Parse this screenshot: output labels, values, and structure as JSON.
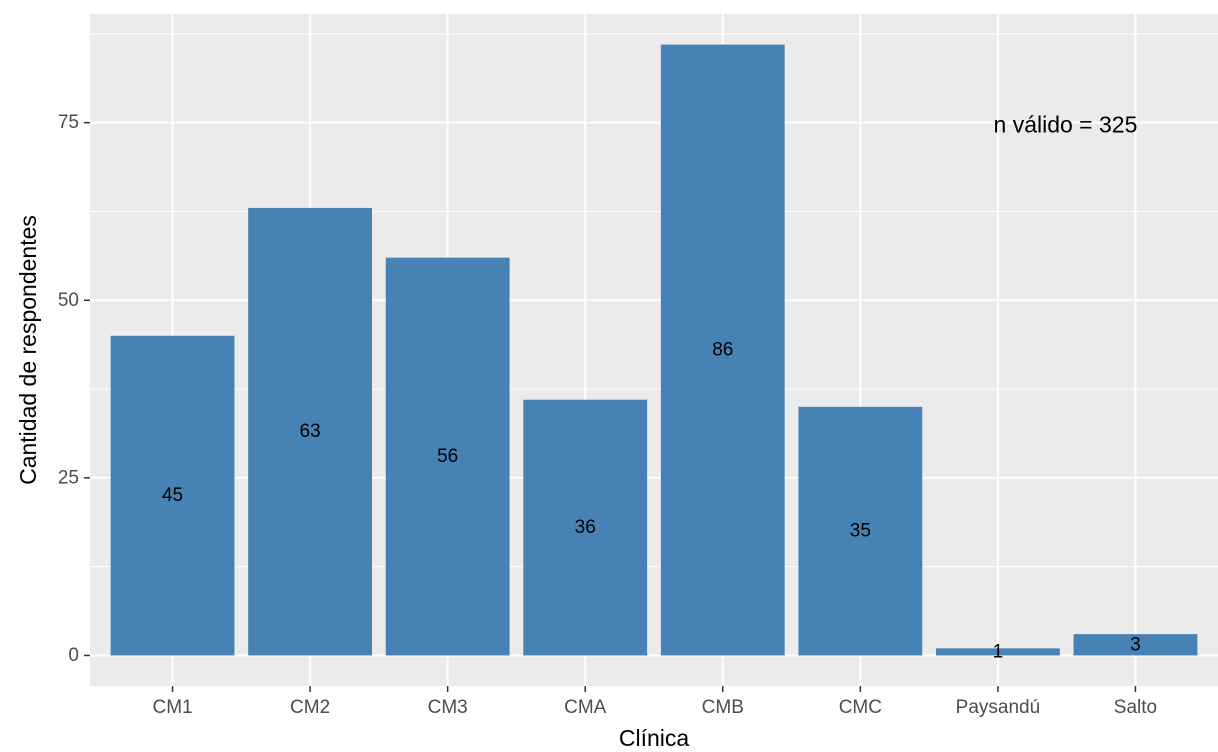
{
  "chart_data": {
    "type": "bar",
    "title": "",
    "xlabel": "Clínica",
    "ylabel": "Cantidad de respondentes",
    "categories": [
      "CM1",
      "CM2",
      "CM3",
      "CMA",
      "CMB",
      "CMC",
      "Paysandú",
      "Salto"
    ],
    "values": [
      45,
      63,
      56,
      36,
      86,
      35,
      1,
      3
    ],
    "data_labels": [
      "45",
      "63",
      "56",
      "36",
      "86",
      "35",
      "1",
      "3"
    ],
    "ylim": [
      -4.3,
      90.3
    ],
    "yticks": [
      0,
      25,
      50,
      75
    ],
    "ytick_labels": [
      "0",
      "25",
      "50",
      "75"
    ],
    "annotation": {
      "text": "n válido = 325",
      "x": "Salto",
      "y": 75
    },
    "grid": true,
    "legend": "none",
    "colors": {
      "bar": "#4682b4",
      "panel": "#ebebeb",
      "grid_major": "#ffffff",
      "tick_text": "#4d4d4d"
    }
  }
}
